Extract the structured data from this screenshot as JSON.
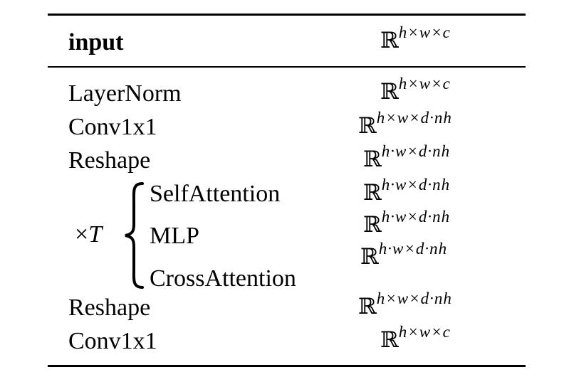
{
  "table": {
    "header": {
      "operation": "input",
      "shape_base": "ℝ",
      "shape_exp": "h×w×c"
    },
    "rows": [
      {
        "operation": "LayerNorm",
        "shape_base": "ℝ",
        "shape_exp": "h×w×c"
      },
      {
        "operation": "Conv1x1",
        "shape_base": "ℝ",
        "shape_exp": "h×w×d·nh"
      },
      {
        "operation": "Reshape",
        "shape_base": "ℝ",
        "shape_exp": "h·w×d·nh"
      },
      {
        "operation": "SelfAttention",
        "shape_base": "ℝ",
        "shape_exp": "h·w×d·nh"
      },
      {
        "operation": "MLP",
        "shape_base": "ℝ",
        "shape_exp": "h·w×d·nh"
      },
      {
        "operation": "CrossAttention",
        "shape_base": "ℝ",
        "shape_exp": "h·w×d·nh"
      },
      {
        "operation": "Reshape",
        "shape_base": "ℝ",
        "shape_exp": "h×w×d·nh"
      },
      {
        "operation": "Conv1x1",
        "shape_base": "ℝ",
        "shape_exp": "h×w×c"
      }
    ],
    "repeat_group": {
      "symbol": "×",
      "variable": "T"
    }
  }
}
